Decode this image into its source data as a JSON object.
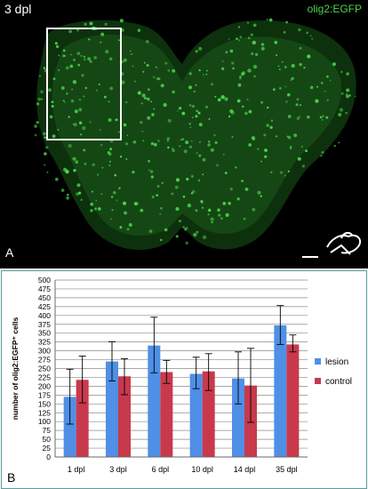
{
  "panel_a": {
    "letter": "A",
    "timepoint": "3 dpl",
    "marker": "olig2:EGFP",
    "marker_color": "#4cd64c",
    "background_color": "#000000"
  },
  "panel_b": {
    "letter": "B"
  },
  "chart_data": {
    "type": "bar",
    "title": "",
    "xlabel": "",
    "ylabel": "number of olig2:EGFP⁺ cells",
    "ylim": [
      0,
      500
    ],
    "yticks": [
      0,
      25,
      50,
      75,
      100,
      125,
      150,
      175,
      200,
      225,
      250,
      275,
      300,
      325,
      350,
      375,
      400,
      425,
      450,
      475,
      500
    ],
    "categories": [
      "1 dpl",
      "3 dpl",
      "6 dpl",
      "10 dpl",
      "14 dpl",
      "35 dpl"
    ],
    "series": [
      {
        "name": "lesion",
        "color": "#4f8fe6",
        "values": [
          170,
          270,
          315,
          235,
          222,
          372
        ],
        "error_low": [
          93,
          215,
          238,
          193,
          150,
          318
        ],
        "error_high": [
          248,
          326,
          395,
          282,
          297,
          428
        ]
      },
      {
        "name": "control",
        "color": "#c8394c",
        "values": [
          218,
          228,
          240,
          242,
          202,
          318
        ],
        "error_low": [
          153,
          176,
          208,
          188,
          98,
          297
        ],
        "error_high": [
          285,
          278,
          273,
          292,
          307,
          345
        ]
      }
    ],
    "grid": true,
    "legend_position": "right"
  }
}
